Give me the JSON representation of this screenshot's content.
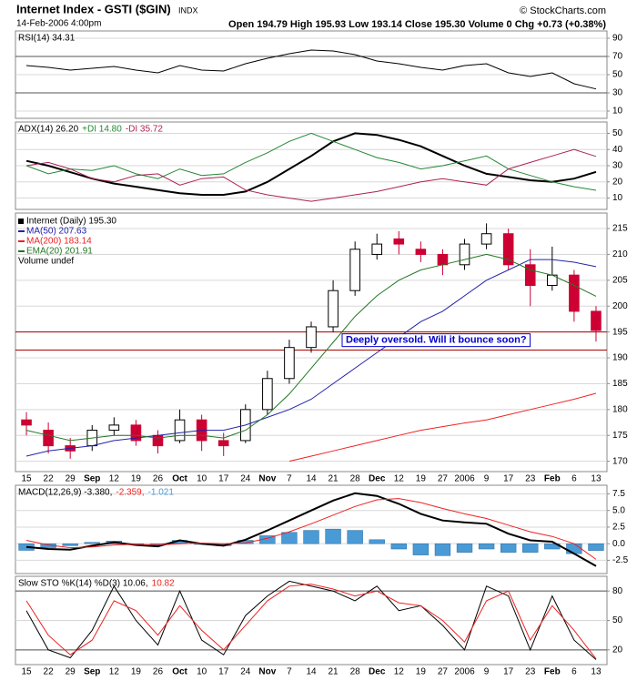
{
  "header": {
    "title": "Internet Index - GSTI ($GIN)",
    "exchange": "INDX",
    "datetime": "14-Feb-2006 4:00pm",
    "quote": "Open 194.79 High 195.93 Low 193.14 Close 195.30 Volume 0 Chg +0.73 (+0.38%)",
    "credit": "© StockCharts.com"
  },
  "chart_data": [
    {
      "type": "line",
      "ylim": [
        2,
        98
      ],
      "yticks": [
        10,
        30,
        50,
        70,
        90
      ],
      "levels": [
        70,
        30
      ],
      "level_color": "#555555",
      "grid": true,
      "series": [
        {
          "name": "RSI(14) 34.31",
          "color": "#000000",
          "values": [
            60,
            58,
            55,
            57,
            59,
            55,
            52,
            60,
            55,
            54,
            62,
            68,
            73,
            77,
            76,
            72,
            65,
            62,
            58,
            55,
            60,
            62,
            52,
            48,
            52,
            40,
            34.31
          ]
        }
      ]
    },
    {
      "type": "line",
      "ylim": [
        3,
        57
      ],
      "yticks": [
        10,
        20,
        30,
        40,
        50
      ],
      "grid": true,
      "series": [
        {
          "name": "ADX(14) 26.20",
          "color": "#000000",
          "width": 2,
          "values": [
            33,
            30,
            26,
            22,
            19,
            17,
            15,
            13,
            12,
            12,
            14,
            20,
            28,
            36,
            45,
            50,
            49,
            46,
            42,
            36,
            30,
            25,
            23,
            21,
            20,
            22,
            26.2
          ]
        },
        {
          "name": "+DI 14.80",
          "color": "#228833",
          "values": [
            30,
            25,
            28,
            27,
            30,
            25,
            22,
            28,
            24,
            25,
            32,
            38,
            45,
            50,
            45,
            40,
            35,
            32,
            28,
            30,
            33,
            36,
            28,
            24,
            20,
            17,
            14.8
          ]
        },
        {
          "name": "-DI 35.72",
          "color": "#aa2255",
          "values": [
            30,
            32,
            28,
            22,
            20,
            24,
            25,
            18,
            22,
            23,
            15,
            12,
            10,
            8,
            10,
            12,
            14,
            17,
            20,
            22,
            20,
            18,
            28,
            32,
            36,
            40,
            35.72
          ]
        }
      ]
    },
    {
      "type": "candlestick",
      "name": "Internet (Daily) 195.30",
      "up_color": "#000000",
      "down_color": "#cc0033",
      "categories": [
        "15",
        "22",
        "29",
        "Sep",
        "12",
        "19",
        "26",
        "Oct",
        "10",
        "17",
        "24",
        "Nov",
        "7",
        "14",
        "21",
        "28",
        "Dec",
        "12",
        "19",
        "27",
        "2006",
        "9",
        "17",
        "23",
        "Feb",
        "6",
        "13"
      ],
      "open": [
        178,
        176,
        173,
        173,
        176,
        177,
        175,
        174,
        178,
        174,
        174,
        180,
        186,
        192,
        196,
        203,
        210,
        213,
        211,
        210,
        208,
        212,
        214,
        208,
        204,
        206,
        199
      ],
      "high": [
        179.5,
        177.5,
        174.5,
        177,
        178.5,
        178,
        176,
        180,
        179,
        175.5,
        181,
        187.5,
        193.5,
        197,
        205,
        212.5,
        214,
        214.5,
        212.5,
        211,
        213,
        216,
        215,
        211,
        211.5,
        207,
        200
      ],
      "low": [
        175,
        171.5,
        170.5,
        172,
        175,
        173,
        171.5,
        173.5,
        172,
        171,
        173.5,
        179,
        185,
        191,
        195,
        202,
        209,
        210,
        208.5,
        206,
        207,
        211,
        207,
        200,
        203,
        197,
        193.14
      ],
      "close": [
        177,
        173,
        172,
        176,
        177,
        174,
        173,
        178,
        174,
        173,
        180,
        186,
        192,
        196,
        203,
        211,
        212,
        212,
        210,
        208,
        212,
        214,
        208,
        204,
        206,
        199,
        195.3
      ],
      "ylim": [
        168,
        218
      ],
      "yticks": [
        170,
        175,
        180,
        185,
        190,
        195,
        200,
        205,
        210,
        215
      ],
      "grid": true,
      "levels": [
        195,
        191.5
      ],
      "level_color": "#aa0000",
      "annotation": "Deeply oversold.  Will it bounce soon?",
      "volume_label": "Volume undef",
      "series": [
        {
          "name": "MA(50) 207.63",
          "color": "#2222aa",
          "values": [
            171,
            172,
            172.5,
            173,
            174,
            174.5,
            175,
            175.5,
            176,
            176,
            177,
            178.5,
            180,
            182,
            185,
            188,
            191,
            194,
            197,
            199,
            202,
            205,
            207,
            209,
            209,
            208.5,
            207.63
          ]
        },
        {
          "name": "MA(200) 183.14",
          "color": "#ee2222",
          "values": [
            null,
            null,
            null,
            null,
            null,
            null,
            null,
            null,
            null,
            null,
            null,
            null,
            170,
            171,
            172,
            173,
            174,
            175,
            176,
            176.7,
            177.4,
            178,
            179,
            180,
            181,
            182,
            183.14
          ]
        },
        {
          "name": "EMA(20) 201.91",
          "color": "#227722",
          "values": [
            176,
            175,
            174,
            174.5,
            175,
            175,
            174.5,
            175,
            175,
            174.5,
            176,
            179,
            183,
            188,
            193,
            198,
            202,
            205,
            207,
            208,
            209,
            210,
            209,
            207,
            206,
            204,
            201.91
          ]
        }
      ]
    },
    {
      "type": "line",
      "ylim": [
        -4.5,
        8.8
      ],
      "yticks": [
        -2.5,
        {
          "value": 0,
          "label": "0.0"
        },
        2.5,
        {
          "value": 5,
          "label": "5.0"
        },
        7.5
      ],
      "grid": true,
      "series": [
        {
          "name": "MACD(12,26,9) -3.380,",
          "color": "#000000",
          "width": 2,
          "values": [
            -0.5,
            -0.8,
            -0.9,
            -0.3,
            0.2,
            -0.2,
            -0.4,
            0.5,
            0,
            -0.3,
            0.6,
            2,
            3.5,
            5,
            6.5,
            7.6,
            7.2,
            6,
            4.5,
            3.5,
            3.2,
            3,
            1.5,
            0.5,
            0.3,
            -1.5,
            -3.38
          ]
        },
        {
          "name": "-2.359,",
          "color": "#ee2222",
          "values": [
            0.5,
            -0.2,
            -0.6,
            -0.5,
            -0.2,
            -0.1,
            -0.2,
            0,
            0.1,
            0,
            0.1,
            0.8,
            1.8,
            3,
            4.3,
            5.6,
            6.6,
            6.8,
            6.2,
            5.3,
            4.5,
            3.8,
            2.8,
            1.8,
            1.1,
            0,
            -2.359
          ]
        },
        {
          "name": "-1.021",
          "color": "#4a9ad6",
          "type": "bar",
          "values": [
            -1,
            -0.6,
            -0.3,
            0.2,
            0.4,
            -0.1,
            -0.2,
            0.5,
            -0.1,
            -0.3,
            0.5,
            1.2,
            1.7,
            2,
            2.2,
            2,
            0.6,
            -0.8,
            -1.7,
            -1.8,
            -1.3,
            -0.8,
            -1.3,
            -1.3,
            -0.8,
            -1.5,
            -1.021
          ]
        }
      ]
    },
    {
      "type": "line",
      "ylim": [
        5,
        95
      ],
      "yticks": [
        20,
        50,
        80
      ],
      "levels": [
        80,
        20
      ],
      "level_color": "#555555",
      "grid": true,
      "categories": [
        "15",
        "22",
        "29",
        "Sep",
        "12",
        "19",
        "26",
        "Oct",
        "10",
        "17",
        "24",
        "Nov",
        "7",
        "14",
        "21",
        "28",
        "Dec",
        "12",
        "19",
        "27",
        "2006",
        "9",
        "17",
        "23",
        "Feb",
        "6",
        "13"
      ],
      "series": [
        {
          "name": "Slow STO %K(14) %D(3) 10.06,",
          "color": "#000000",
          "values": [
            60,
            20,
            12,
            40,
            85,
            50,
            25,
            80,
            30,
            15,
            55,
            75,
            90,
            85,
            80,
            70,
            85,
            60,
            65,
            45,
            20,
            85,
            75,
            20,
            75,
            30,
            10.06
          ]
        },
        {
          "name": "10.82",
          "color": "#ee2222",
          "values": [
            70,
            35,
            15,
            30,
            70,
            60,
            35,
            65,
            40,
            20,
            45,
            70,
            85,
            87,
            82,
            75,
            80,
            68,
            65,
            50,
            28,
            70,
            80,
            30,
            65,
            40,
            10.82
          ]
        }
      ]
    }
  ]
}
